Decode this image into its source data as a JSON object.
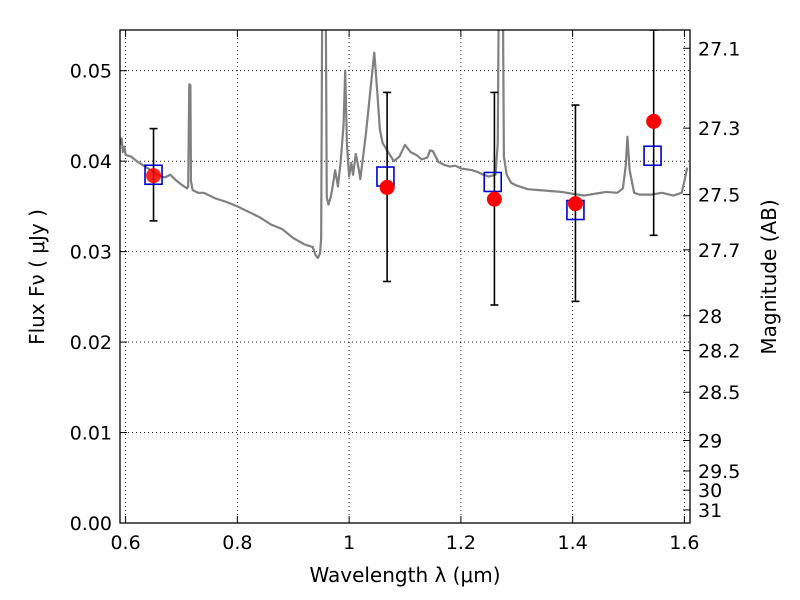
{
  "chart_data": {
    "type": "scatter",
    "title": "",
    "xlabel": "Wavelength  λ (μm)",
    "ylabel": "Flux  Fν  ( μJy )",
    "ylabel_right": "Magnitude (AB)",
    "xlim": [
      0.59,
      1.61
    ],
    "ylim": [
      0.0,
      0.0545
    ],
    "grid": true,
    "x_ticks": [
      {
        "value": 0.6,
        "label": "0.6"
      },
      {
        "value": 0.8,
        "label": "0.8"
      },
      {
        "value": 1.0,
        "label": "1"
      },
      {
        "value": 1.2,
        "label": "1.2"
      },
      {
        "value": 1.4,
        "label": "1.4"
      },
      {
        "value": 1.6,
        "label": "1.6"
      }
    ],
    "y_ticks": [
      {
        "value": 0.0,
        "label": "0.00"
      },
      {
        "value": 0.01,
        "label": "0.01"
      },
      {
        "value": 0.02,
        "label": "0.02"
      },
      {
        "value": 0.03,
        "label": "0.03"
      },
      {
        "value": 0.04,
        "label": "0.04"
      },
      {
        "value": 0.05,
        "label": "0.05"
      }
    ],
    "y2_ticks": [
      {
        "value": 27.1,
        "label": "27.1"
      },
      {
        "value": 27.3,
        "label": "27.3"
      },
      {
        "value": 27.5,
        "label": "27.5"
      },
      {
        "value": 27.7,
        "label": "27.7"
      },
      {
        "value": 28.0,
        "label": "28"
      },
      {
        "value": 28.2,
        "label": "28.2"
      },
      {
        "value": 28.5,
        "label": "28.5"
      },
      {
        "value": 29.0,
        "label": "29"
      },
      {
        "value": 29.5,
        "label": "29.5"
      },
      {
        "value": 30.0,
        "label": "30"
      },
      {
        "value": 31.0,
        "label": "31"
      }
    ],
    "colors": {
      "spectrum": "#808080",
      "observed": "#ff0000",
      "model": "#0000cc",
      "errorbar": "#000000",
      "grid": "#000000"
    },
    "spectrum": [
      [
        0.59,
        0.0418
      ],
      [
        0.593,
        0.0425
      ],
      [
        0.595,
        0.041
      ],
      [
        0.598,
        0.0416
      ],
      [
        0.6,
        0.0407
      ],
      [
        0.61,
        0.0405
      ],
      [
        0.62,
        0.04
      ],
      [
        0.63,
        0.0396
      ],
      [
        0.64,
        0.0392
      ],
      [
        0.65,
        0.0388
      ],
      [
        0.66,
        0.0384
      ],
      [
        0.67,
        0.0382
      ],
      [
        0.68,
        0.0385
      ],
      [
        0.69,
        0.0379
      ],
      [
        0.7,
        0.0374
      ],
      [
        0.71,
        0.037
      ],
      [
        0.712,
        0.0372
      ],
      [
        0.714,
        0.0485
      ],
      [
        0.716,
        0.0484
      ],
      [
        0.717,
        0.0378
      ],
      [
        0.72,
        0.0368
      ],
      [
        0.73,
        0.0365
      ],
      [
        0.74,
        0.0365
      ],
      [
        0.75,
        0.0362
      ],
      [
        0.76,
        0.0359
      ],
      [
        0.78,
        0.0355
      ],
      [
        0.8,
        0.035
      ],
      [
        0.82,
        0.0344
      ],
      [
        0.84,
        0.0338
      ],
      [
        0.86,
        0.033
      ],
      [
        0.88,
        0.0325
      ],
      [
        0.9,
        0.0315
      ],
      [
        0.92,
        0.0308
      ],
      [
        0.935,
        0.0305
      ],
      [
        0.94,
        0.0296
      ],
      [
        0.944,
        0.0293
      ],
      [
        0.948,
        0.0298
      ],
      [
        0.95,
        0.0315
      ],
      [
        0.952,
        0.06
      ],
      [
        0.958,
        0.06
      ],
      [
        0.96,
        0.036
      ],
      [
        0.963,
        0.0352
      ],
      [
        0.967,
        0.036
      ],
      [
        0.97,
        0.037
      ],
      [
        0.975,
        0.039
      ],
      [
        0.98,
        0.0372
      ],
      [
        0.985,
        0.04
      ],
      [
        0.99,
        0.044
      ],
      [
        0.993,
        0.05
      ],
      [
        0.996,
        0.042
      ],
      [
        1.0,
        0.0383
      ],
      [
        1.004,
        0.0398
      ],
      [
        1.007,
        0.0385
      ],
      [
        1.012,
        0.0408
      ],
      [
        1.017,
        0.0392
      ],
      [
        1.02,
        0.038
      ],
      [
        1.03,
        0.043
      ],
      [
        1.04,
        0.049
      ],
      [
        1.045,
        0.052
      ],
      [
        1.05,
        0.048
      ],
      [
        1.055,
        0.0435
      ],
      [
        1.06,
        0.042
      ],
      [
        1.07,
        0.041
      ],
      [
        1.08,
        0.04
      ],
      [
        1.09,
        0.0405
      ],
      [
        1.1,
        0.0418
      ],
      [
        1.11,
        0.041
      ],
      [
        1.12,
        0.0407
      ],
      [
        1.13,
        0.0402
      ],
      [
        1.14,
        0.0404
      ],
      [
        1.145,
        0.0412
      ],
      [
        1.15,
        0.0411
      ],
      [
        1.16,
        0.0399
      ],
      [
        1.17,
        0.0396
      ],
      [
        1.18,
        0.0394
      ],
      [
        1.19,
        0.0395
      ],
      [
        1.2,
        0.0392
      ],
      [
        1.21,
        0.0391
      ],
      [
        1.22,
        0.039
      ],
      [
        1.23,
        0.0388
      ],
      [
        1.24,
        0.0385
      ],
      [
        1.25,
        0.0383
      ],
      [
        1.262,
        0.0385
      ],
      [
        1.266,
        0.042
      ],
      [
        1.268,
        0.06
      ],
      [
        1.275,
        0.06
      ],
      [
        1.277,
        0.0405
      ],
      [
        1.282,
        0.0385
      ],
      [
        1.29,
        0.0376
      ],
      [
        1.3,
        0.0373
      ],
      [
        1.32,
        0.0369
      ],
      [
        1.34,
        0.0368
      ],
      [
        1.36,
        0.0367
      ],
      [
        1.38,
        0.0366
      ],
      [
        1.4,
        0.0364
      ],
      [
        1.42,
        0.0362
      ],
      [
        1.44,
        0.0364
      ],
      [
        1.46,
        0.0366
      ],
      [
        1.48,
        0.0365
      ],
      [
        1.49,
        0.037
      ],
      [
        1.495,
        0.0395
      ],
      [
        1.498,
        0.0427
      ],
      [
        1.502,
        0.039
      ],
      [
        1.51,
        0.0365
      ],
      [
        1.52,
        0.0363
      ],
      [
        1.54,
        0.0363
      ],
      [
        1.56,
        0.0365
      ],
      [
        1.58,
        0.0362
      ],
      [
        1.595,
        0.0365
      ],
      [
        1.6,
        0.0378
      ],
      [
        1.605,
        0.0393
      ]
    ],
    "observed_points": [
      {
        "x": 0.65,
        "y": 0.0384,
        "ylow": 0.0334,
        "yhigh": 0.0436
      },
      {
        "x": 1.068,
        "y": 0.0371,
        "ylow": 0.0267,
        "yhigh": 0.0476
      },
      {
        "x": 1.26,
        "y": 0.0358,
        "ylow": 0.0241,
        "yhigh": 0.0476
      },
      {
        "x": 1.405,
        "y": 0.0353,
        "ylow": 0.0245,
        "yhigh": 0.0462
      },
      {
        "x": 1.545,
        "y": 0.0444,
        "ylow": 0.0318,
        "yhigh": 0.0545
      }
    ],
    "model_points": [
      {
        "x": 0.65,
        "y": 0.0385
      },
      {
        "x": 1.065,
        "y": 0.0383
      },
      {
        "x": 1.257,
        "y": 0.0377
      },
      {
        "x": 1.405,
        "y": 0.0346
      },
      {
        "x": 1.543,
        "y": 0.0406
      }
    ]
  }
}
